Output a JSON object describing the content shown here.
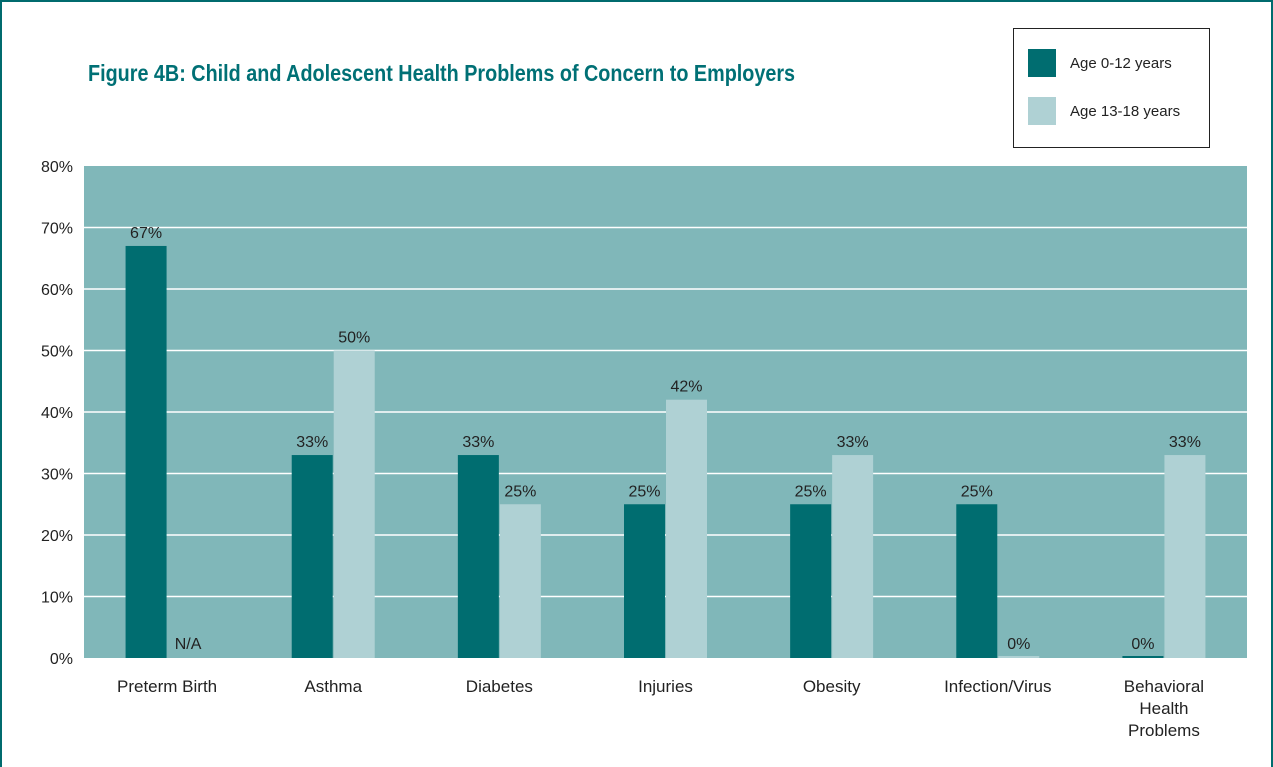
{
  "colors": {
    "frame": "#006b6e",
    "title": "#007075",
    "plot_background": "#80b7b9",
    "gridline": "#ffffff",
    "series_0_12": "#006d70",
    "series_13_18": "#afd1d4"
  },
  "chart_data": {
    "type": "bar",
    "title": "Figure 4B: Child and Adolescent Health Problems of Concern to Employers",
    "xlabel": "",
    "ylabel": "",
    "ylim": [
      0,
      80
    ],
    "yticks": [
      "0%",
      "10%",
      "20%",
      "30%",
      "40%",
      "50%",
      "60%",
      "70%",
      "80%"
    ],
    "grid": true,
    "legend_position": "top-right",
    "categories": [
      [
        "Preterm Birth"
      ],
      [
        "Asthma"
      ],
      [
        "Diabetes"
      ],
      [
        "Injuries"
      ],
      [
        "Obesity"
      ],
      [
        "Infection/Virus"
      ],
      [
        "Behavioral",
        "Health",
        "Problems"
      ]
    ],
    "series": [
      {
        "name": "Age 0-12 years",
        "values": [
          67,
          33,
          33,
          25,
          25,
          25,
          0
        ],
        "labels": [
          "67%",
          "33%",
          "33%",
          "25%",
          "25%",
          "25%",
          "0%"
        ]
      },
      {
        "name": "Age 13-18 years",
        "values": [
          null,
          50,
          25,
          42,
          33,
          0,
          33
        ],
        "labels": [
          "N/A",
          "50%",
          "25%",
          "42%",
          "33%",
          "0%",
          "33%"
        ]
      }
    ]
  }
}
